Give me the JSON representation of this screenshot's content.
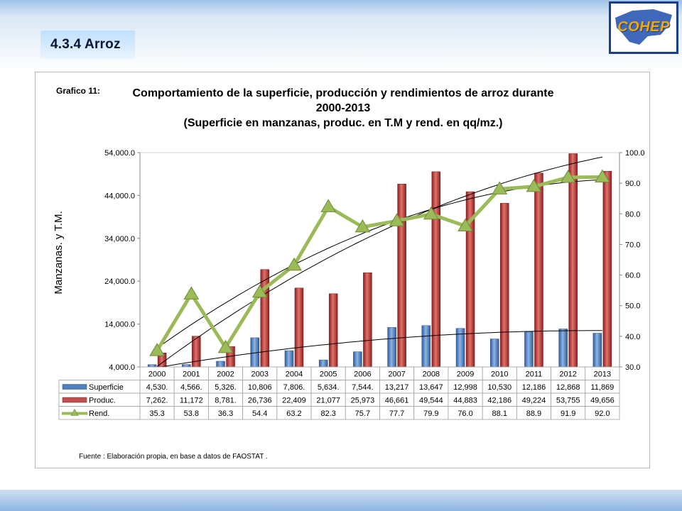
{
  "slide": {
    "section_title": "4.3.4 Arroz",
    "logo_text": "COHEP"
  },
  "chart_data": {
    "type": "bar",
    "figure_label": "Grafico 11:",
    "title_lines": [
      "Comportamiento de la superficie, producción y rendimientos de arroz durante",
      "2000-2013",
      "(Superficie en manzanas, produc. en T.M y rend. en  qq/mz.)"
    ],
    "ylabel": "Manzanas. y T.M.",
    "ylim": [
      4000,
      54000
    ],
    "y_ticks": [
      "4,000.0",
      "14,000.0",
      "24,000.0",
      "34,000.0",
      "44,000.0",
      "54,000.0"
    ],
    "y2lim": [
      30,
      100
    ],
    "y2_ticks": [
      "30.0",
      "40.0",
      "50.0",
      "60.0",
      "70.0",
      "80.0",
      "90.0",
      "100.0"
    ],
    "categories": [
      "2000",
      "2001",
      "2002",
      "2003",
      "2004",
      "2005",
      "2006",
      "2007",
      "2008",
      "2009",
      "2010",
      "2011",
      "2012",
      "2013"
    ],
    "series": [
      {
        "name": "Superficie",
        "kind": "bar",
        "axis": "left",
        "color": "#4f81bd",
        "values": [
          4530,
          4566,
          5326,
          10806,
          7806,
          5634,
          7544,
          13217,
          13647,
          12998,
          10530,
          12186,
          12868,
          11869
        ],
        "labels": [
          "4,530.",
          "4,566.",
          "5,326.",
          "10,806",
          "7,806.",
          "5,634.",
          "7,544.",
          "13,217",
          "13,647",
          "12,998",
          "10,530",
          "12,186",
          "12,868",
          "11,869"
        ]
      },
      {
        "name": "Produc.",
        "kind": "bar",
        "axis": "left",
        "color": "#c0504d",
        "values": [
          7262,
          11172,
          8781,
          26736,
          22409,
          21077,
          25973,
          46661,
          49544,
          44883,
          42186,
          49224,
          53755,
          49656
        ],
        "labels": [
          "7,262.",
          "11,172",
          "8,781.",
          "26,736",
          "22,409",
          "21,077",
          "25,973",
          "46,661",
          "49,544",
          "44,883",
          "42,186",
          "49,224",
          "53,755",
          "49,656"
        ]
      },
      {
        "name": "Rend.",
        "kind": "line",
        "axis": "right",
        "color": "#9bbb59",
        "values": [
          35.3,
          53.8,
          36.3,
          54.4,
          63.2,
          82.3,
          75.7,
          77.7,
          79.9,
          76.0,
          88.1,
          88.9,
          91.9,
          92.0
        ],
        "labels": [
          "35.3",
          "53.8",
          "36.3",
          "54.4",
          "63.2",
          "82.3",
          "75.7",
          "77.7",
          "79.9",
          "76.0",
          "88.1",
          "88.9",
          "91.9",
          "92.0"
        ]
      }
    ],
    "data_table": true,
    "trendlines": true,
    "source_note": "Fuente : Elaboración propia, en base a datos de FAOSTAT ."
  }
}
